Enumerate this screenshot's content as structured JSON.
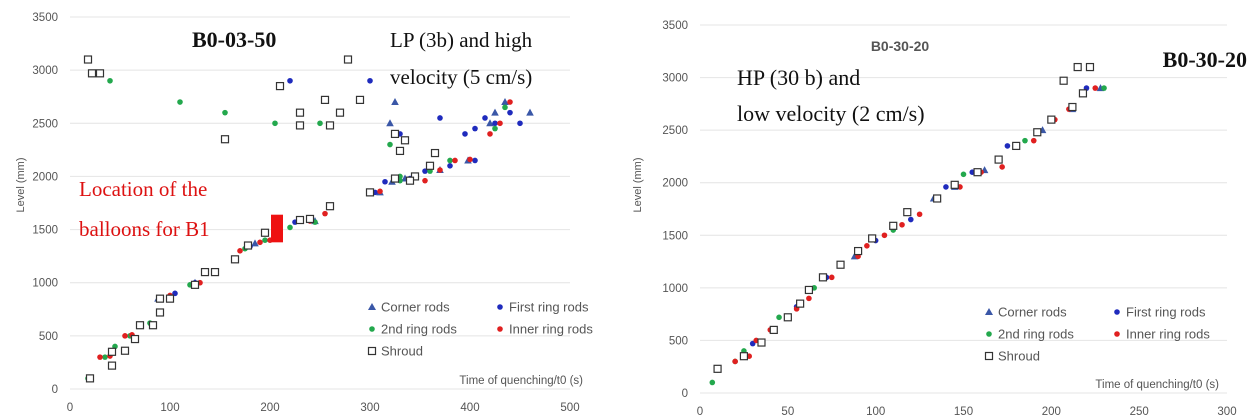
{
  "charts_meta": {
    "legend_labels": {
      "corner": "Corner rods",
      "first": "First ring rods",
      "second": "2nd  ring rods",
      "inner": "Inner ring rods",
      "shroud": "Shroud"
    },
    "colors": {
      "corner": "#3a57a7",
      "first": "#1f2bbd",
      "second": "#23a84d",
      "inner": "#e02020",
      "shroud": "#333333",
      "balloon": "#ee1111",
      "annotation_red": "#dd1111"
    }
  },
  "chart_data": [
    {
      "type": "scatter",
      "title": "B0-03-50",
      "subtitle": "LP (3b) and high velocity (5 cm/s)",
      "annotation": "Location of the balloons for B1",
      "ylabel": "Level (mm)",
      "xlabel": "Time of quenching/t0 (s)",
      "xlim": [
        0,
        500
      ],
      "ylim": [
        0,
        3500
      ],
      "xticks": [
        0,
        100,
        200,
        300,
        400,
        500
      ],
      "yticks": [
        0,
        500,
        1000,
        1500,
        2000,
        2500,
        3000,
        3500
      ],
      "legend_position": "bottom-right",
      "balloon_marker": {
        "x": 207,
        "y_range": [
          1380,
          1640
        ]
      },
      "series": [
        {
          "name": "Corner rods",
          "marker": "triangle",
          "color_key": "corner",
          "points": [
            [
              88,
              850
            ],
            [
              125,
              1000
            ],
            [
              185,
              1370
            ],
            [
              245,
              1580
            ],
            [
              310,
              1850
            ],
            [
              322,
              1950
            ],
            [
              335,
              1980
            ],
            [
              370,
              2060
            ],
            [
              398,
              2150
            ],
            [
              425,
              2600
            ],
            [
              460,
              2600
            ],
            [
              325,
              2700
            ],
            [
              320,
              2500
            ],
            [
              420,
              2500
            ],
            [
              435,
              2700
            ]
          ]
        },
        {
          "name": "First ring rods",
          "marker": "dot",
          "color_key": "first",
          "points": [
            [
              105,
              900
            ],
            [
              125,
              1000
            ],
            [
              180,
              1340
            ],
            [
              225,
              1570
            ],
            [
              240,
              1600
            ],
            [
              305,
              1850
            ],
            [
              315,
              1950
            ],
            [
              340,
              1980
            ],
            [
              355,
              2050
            ],
            [
              380,
              2100
            ],
            [
              405,
              2150
            ],
            [
              405,
              2450
            ],
            [
              425,
              2500
            ],
            [
              440,
              2600
            ],
            [
              450,
              2500
            ],
            [
              330,
              2400
            ],
            [
              300,
              2900
            ],
            [
              220,
              2900
            ],
            [
              395,
              2400
            ],
            [
              415,
              2550
            ],
            [
              370,
              2550
            ]
          ]
        },
        {
          "name": "2nd  ring rods",
          "marker": "dot",
          "color_key": "second",
          "points": [
            [
              18,
              100
            ],
            [
              35,
              300
            ],
            [
              45,
              400
            ],
            [
              60,
              500
            ],
            [
              80,
              620
            ],
            [
              120,
              980
            ],
            [
              175,
              1320
            ],
            [
              195,
              1400
            ],
            [
              220,
              1520
            ],
            [
              245,
              1570
            ],
            [
              300,
              1850
            ],
            [
              330,
              1960
            ],
            [
              360,
              2050
            ],
            [
              380,
              2150
            ],
            [
              425,
              2450
            ],
            [
              435,
              2650
            ],
            [
              40,
              2900
            ],
            [
              110,
              2700
            ],
            [
              155,
              2600
            ],
            [
              205,
              2500
            ],
            [
              250,
              2500
            ],
            [
              320,
              2300
            ],
            [
              330,
              2000
            ]
          ]
        },
        {
          "name": "Inner ring rods",
          "marker": "dot",
          "color_key": "inner",
          "points": [
            [
              30,
              300
            ],
            [
              40,
              310
            ],
            [
              55,
              500
            ],
            [
              62,
              510
            ],
            [
              70,
              600
            ],
            [
              82,
              610
            ],
            [
              100,
              880
            ],
            [
              130,
              1000
            ],
            [
              145,
              1100
            ],
            [
              170,
              1300
            ],
            [
              190,
              1380
            ],
            [
              200,
              1400
            ],
            [
              240,
              1580
            ],
            [
              255,
              1650
            ],
            [
              300,
              1850
            ],
            [
              310,
              1860
            ],
            [
              340,
              1960
            ],
            [
              355,
              1960
            ],
            [
              370,
              2060
            ],
            [
              385,
              2150
            ],
            [
              400,
              2160
            ],
            [
              420,
              2400
            ],
            [
              430,
              2500
            ],
            [
              440,
              2700
            ]
          ]
        },
        {
          "name": "Shroud",
          "marker": "square",
          "color_key": "shroud",
          "points": [
            [
              18,
              3100
            ],
            [
              22,
              2970
            ],
            [
              30,
              2970
            ],
            [
              20,
              100
            ],
            [
              42,
              220
            ],
            [
              42,
              350
            ],
            [
              55,
              360
            ],
            [
              65,
              470
            ],
            [
              70,
              600
            ],
            [
              83,
              600
            ],
            [
              90,
              720
            ],
            [
              90,
              850
            ],
            [
              100,
              850
            ],
            [
              125,
              980
            ],
            [
              135,
              1100
            ],
            [
              145,
              1100
            ],
            [
              165,
              1220
            ],
            [
              178,
              1350
            ],
            [
              195,
              1470
            ],
            [
              230,
              1590
            ],
            [
              240,
              1600
            ],
            [
              260,
              1720
            ],
            [
              260,
              2480
            ],
            [
              270,
              2600
            ],
            [
              255,
              2720
            ],
            [
              278,
              3100
            ],
            [
              290,
              2720
            ],
            [
              230,
              2600
            ],
            [
              210,
              2850
            ],
            [
              230,
              2480
            ],
            [
              155,
              2350
            ],
            [
              300,
              1850
            ],
            [
              325,
              1980
            ],
            [
              330,
              2240
            ],
            [
              335,
              2340
            ],
            [
              345,
              2000
            ],
            [
              360,
              2100
            ],
            [
              365,
              2220
            ],
            [
              325,
              2400
            ],
            [
              340,
              1960
            ]
          ]
        }
      ]
    },
    {
      "type": "scatter",
      "title": "B0-30-20",
      "subtitle": "HP (30 b) and low velocity (2 cm/s)",
      "side_label": "B0-30-20",
      "ylabel": "Level (mm)",
      "xlabel": "Time of quenching/t0 (s)",
      "xlim": [
        0,
        300
      ],
      "ylim": [
        0,
        3500
      ],
      "xticks": [
        0,
        50,
        100,
        150,
        200,
        250,
        300
      ],
      "yticks": [
        0,
        500,
        1000,
        1500,
        2000,
        2500,
        3000,
        3500
      ],
      "legend_position": "bottom-right",
      "series": [
        {
          "name": "Corner rods",
          "marker": "triangle",
          "color_key": "corner",
          "points": [
            [
              88,
              1300
            ],
            [
              133,
              1850
            ],
            [
              145,
              1960
            ],
            [
              162,
              2120
            ],
            [
              180,
              2350
            ],
            [
              195,
              2500
            ],
            [
              212,
              2700
            ],
            [
              228,
              2900
            ]
          ]
        },
        {
          "name": "First ring rods",
          "marker": "dot",
          "color_key": "first",
          "points": [
            [
              10,
              220
            ],
            [
              30,
              470
            ],
            [
              55,
              820
            ],
            [
              72,
              1100
            ],
            [
              100,
              1450
            ],
            [
              120,
              1650
            ],
            [
              140,
              1960
            ],
            [
              155,
              2100
            ],
            [
              175,
              2350
            ],
            [
              200,
              2600
            ],
            [
              220,
              2900
            ]
          ]
        },
        {
          "name": "2nd  ring rods",
          "marker": "dot",
          "color_key": "second",
          "points": [
            [
              7,
              100
            ],
            [
              20,
              300
            ],
            [
              25,
              400
            ],
            [
              45,
              720
            ],
            [
              65,
              1000
            ],
            [
              90,
              1350
            ],
            [
              110,
              1550
            ],
            [
              135,
              1850
            ],
            [
              150,
              2080
            ],
            [
              185,
              2400
            ],
            [
              230,
              2900
            ]
          ]
        },
        {
          "name": "Inner ring rods",
          "marker": "dot",
          "color_key": "inner",
          "points": [
            [
              20,
              300
            ],
            [
              28,
              350
            ],
            [
              32,
              500
            ],
            [
              40,
              600
            ],
            [
              55,
              800
            ],
            [
              62,
              900
            ],
            [
              75,
              1100
            ],
            [
              90,
              1300
            ],
            [
              95,
              1400
            ],
            [
              105,
              1500
            ],
            [
              115,
              1600
            ],
            [
              125,
              1700
            ],
            [
              135,
              1850
            ],
            [
              148,
              1960
            ],
            [
              160,
              2100
            ],
            [
              172,
              2150
            ],
            [
              190,
              2400
            ],
            [
              202,
              2600
            ],
            [
              210,
              2700
            ],
            [
              225,
              2900
            ]
          ]
        },
        {
          "name": "Shroud",
          "marker": "square",
          "color_key": "shroud",
          "points": [
            [
              10,
              230
            ],
            [
              25,
              350
            ],
            [
              35,
              480
            ],
            [
              42,
              600
            ],
            [
              50,
              720
            ],
            [
              57,
              850
            ],
            [
              62,
              980
            ],
            [
              70,
              1100
            ],
            [
              80,
              1220
            ],
            [
              90,
              1350
            ],
            [
              98,
              1470
            ],
            [
              110,
              1590
            ],
            [
              118,
              1720
            ],
            [
              135,
              1850
            ],
            [
              145,
              1980
            ],
            [
              158,
              2100
            ],
            [
              170,
              2220
            ],
            [
              180,
              2350
            ],
            [
              192,
              2480
            ],
            [
              200,
              2600
            ],
            [
              207,
              2970
            ],
            [
              215,
              3100
            ],
            [
              222,
              3100
            ],
            [
              218,
              2850
            ],
            [
              212,
              2720
            ]
          ]
        }
      ]
    }
  ]
}
